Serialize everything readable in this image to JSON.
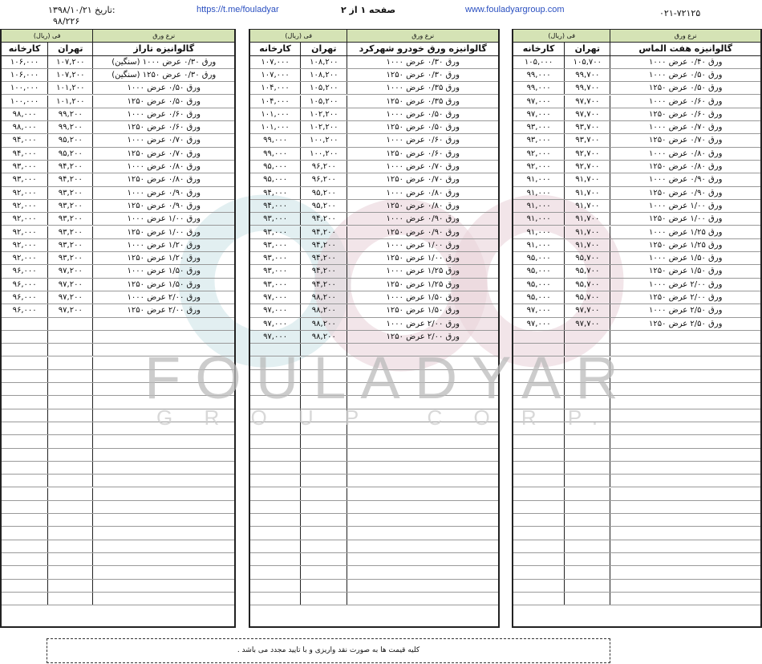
{
  "header": {
    "date_label": "تاریخ:",
    "date": "۱۳۹۸/۱۰/۲۱",
    "number": "۹۸/۲۲۶",
    "telegram": "https://t.me/fouladyar",
    "page": "صفحه ۱ از ۲",
    "website": "www.fouladyargroup.com",
    "phone": "۰۲۱-۷۲۱۲۵"
  },
  "watermark": {
    "brand": "FOULADYAR",
    "sub": "G R O U P   C O R P."
  },
  "colors": {
    "header_green": "#d5e3b5",
    "link_blue": "#2a4fc0"
  },
  "tables": [
    {
      "type_label": "نرع ورق",
      "price_label": "فی (ریال)",
      "title": "گالوانیزه تاراز",
      "col_tehran": "تهران",
      "col_factory": "کارخانه",
      "rows": [
        [
          "ورق ۰/۳۰ عرض ۱۰۰۰ (سنگین)",
          "۱۰۷,۲۰۰",
          "۱۰۶,۰۰۰"
        ],
        [
          "ورق ۰/۳۰ عرض ۱۲۵۰ (سنگین)",
          "۱۰۷,۲۰۰",
          "۱۰۶,۰۰۰"
        ],
        [
          "ورق ۰/۵۰ عرض ۱۰۰۰",
          "۱۰۱,۲۰۰",
          "۱۰۰,۰۰۰"
        ],
        [
          "ورق ۰/۵۰ عرض ۱۲۵۰",
          "۱۰۱,۲۰۰",
          "۱۰۰,۰۰۰"
        ],
        [
          "ورق ۰/۶۰ عرض ۱۰۰۰",
          "۹۹,۲۰۰",
          "۹۸,۰۰۰"
        ],
        [
          "ورق ۰/۶۰ عرض ۱۲۵۰",
          "۹۹,۲۰۰",
          "۹۸,۰۰۰"
        ],
        [
          "ورق ۰/۷۰ عرض ۱۰۰۰",
          "۹۵,۲۰۰",
          "۹۴,۰۰۰"
        ],
        [
          "ورق ۰/۷۰ عرض ۱۲۵۰",
          "۹۵,۲۰۰",
          "۹۴,۰۰۰"
        ],
        [
          "ورق ۰/۸۰ عرض ۱۰۰۰",
          "۹۴,۲۰۰",
          "۹۳,۰۰۰"
        ],
        [
          "ورق ۰/۸۰ عرض ۱۲۵۰",
          "۹۴,۲۰۰",
          "۹۳,۰۰۰"
        ],
        [
          "ورق ۰/۹۰ عرض ۱۰۰۰",
          "۹۳,۲۰۰",
          "۹۲,۰۰۰"
        ],
        [
          "ورق ۰/۹۰ عرض ۱۲۵۰",
          "۹۳,۲۰۰",
          "۹۲,۰۰۰"
        ],
        [
          "ورق ۱/۰۰ عرض ۱۰۰۰",
          "۹۳,۲۰۰",
          "۹۲,۰۰۰"
        ],
        [
          "ورق ۱/۰۰ عرض ۱۲۵۰",
          "۹۳,۲۰۰",
          "۹۲,۰۰۰"
        ],
        [
          "ورق ۱/۲۰ عرض ۱۰۰۰",
          "۹۳,۲۰۰",
          "۹۲,۰۰۰"
        ],
        [
          "ورق ۱/۲۰ عرض ۱۲۵۰",
          "۹۳,۲۰۰",
          "۹۲,۰۰۰"
        ],
        [
          "ورق ۱/۵۰ عرض ۱۰۰۰",
          "۹۷,۲۰۰",
          "۹۶,۰۰۰"
        ],
        [
          "ورق ۱/۵۰ عرض ۱۲۵۰",
          "۹۷,۲۰۰",
          "۹۶,۰۰۰"
        ],
        [
          "ورق ۲/۰۰ عرض ۱۰۰۰",
          "۹۷,۲۰۰",
          "۹۶,۰۰۰"
        ],
        [
          "ورق ۲/۰۰ عرض ۱۲۵۰",
          "۹۷,۲۰۰",
          "۹۶,۰۰۰"
        ]
      ]
    },
    {
      "type_label": "نرع ورق",
      "price_label": "فی (ریال)",
      "title": "گالوانیزه ورق خودرو شهرکرد",
      "col_tehran": "تهران",
      "col_factory": "کارخانه",
      "rows": [
        [
          "ورق ۰/۳۰ عرض ۱۰۰۰",
          "۱۰۸,۲۰۰",
          "۱۰۷,۰۰۰"
        ],
        [
          "ورق ۰/۳۰ عرض ۱۲۵۰",
          "۱۰۸,۲۰۰",
          "۱۰۷,۰۰۰"
        ],
        [
          "ورق ۰/۳۵ عرض ۱۰۰۰",
          "۱۰۵,۲۰۰",
          "۱۰۴,۰۰۰"
        ],
        [
          "ورق ۰/۳۵ عرض ۱۲۵۰",
          "۱۰۵,۲۰۰",
          "۱۰۴,۰۰۰"
        ],
        [
          "ورق ۰/۵۰ عرض ۱۰۰۰",
          "۱۰۲,۲۰۰",
          "۱۰۱,۰۰۰"
        ],
        [
          "ورق ۰/۵۰ عرض ۱۲۵۰",
          "۱۰۲,۲۰۰",
          "۱۰۱,۰۰۰"
        ],
        [
          "ورق ۰/۶۰ عرض ۱۰۰۰",
          "۱۰۰,۲۰۰",
          "۹۹,۰۰۰"
        ],
        [
          "ورق ۰/۶۰ عرض ۱۲۵۰",
          "۱۰۰,۲۰۰",
          "۹۹,۰۰۰"
        ],
        [
          "ورق ۰/۷۰ عرض ۱۰۰۰",
          "۹۶,۲۰۰",
          "۹۵,۰۰۰"
        ],
        [
          "ورق ۰/۷۰ عرض ۱۲۵۰",
          "۹۶,۲۰۰",
          "۹۵,۰۰۰"
        ],
        [
          "ورق ۰/۸۰ عرض ۱۰۰۰",
          "۹۵,۲۰۰",
          "۹۴,۰۰۰"
        ],
        [
          "ورق ۰/۸۰ عرض ۱۲۵۰",
          "۹۵,۲۰۰",
          "۹۴,۰۰۰"
        ],
        [
          "ورق ۰/۹۰ عرض ۱۰۰۰",
          "۹۴,۲۰۰",
          "۹۳,۰۰۰"
        ],
        [
          "ورق ۰/۹۰ عرض ۱۲۵۰",
          "۹۴,۲۰۰",
          "۹۳,۰۰۰"
        ],
        [
          "ورق ۱/۰۰ عرض ۱۰۰۰",
          "۹۴,۲۰۰",
          "۹۳,۰۰۰"
        ],
        [
          "ورق ۱/۰۰ عرض ۱۲۵۰",
          "۹۴,۲۰۰",
          "۹۳,۰۰۰"
        ],
        [
          "ورق ۱/۲۵ عرض ۱۰۰۰",
          "۹۴,۲۰۰",
          "۹۳,۰۰۰"
        ],
        [
          "ورق ۱/۲۵ عرض ۱۲۵۰",
          "۹۴,۲۰۰",
          "۹۳,۰۰۰"
        ],
        [
          "ورق ۱/۵۰ عرض ۱۰۰۰",
          "۹۸,۲۰۰",
          "۹۷,۰۰۰"
        ],
        [
          "ورق ۱/۵۰ عرض ۱۲۵۰",
          "۹۸,۲۰۰",
          "۹۷,۰۰۰"
        ],
        [
          "ورق ۲/۰۰ عرض ۱۰۰۰",
          "۹۸,۲۰۰",
          "۹۷,۰۰۰"
        ],
        [
          "ورق ۲/۰۰ عرض ۱۲۵۰",
          "۹۸,۲۰۰",
          "۹۷,۰۰۰"
        ]
      ]
    },
    {
      "type_label": "نرع ورق",
      "price_label": "فی (ریال)",
      "title": "گالوانیزه هفت الماس",
      "col_tehran": "تهران",
      "col_factory": "کارخانه",
      "rows": [
        [
          "ورق ۰/۴۰ عرض ۱۰۰۰",
          "۱۰۵,۷۰۰",
          "۱۰۵,۰۰۰"
        ],
        [
          "ورق ۰/۵۰ عرض ۱۰۰۰",
          "۹۹,۷۰۰",
          "۹۹,۰۰۰"
        ],
        [
          "ورق ۰/۵۰ عرض ۱۲۵۰",
          "۹۹,۷۰۰",
          "۹۹,۰۰۰"
        ],
        [
          "ورق ۰/۶۰ عرض ۱۰۰۰",
          "۹۷,۷۰۰",
          "۹۷,۰۰۰"
        ],
        [
          "ورق ۰/۶۰ عرض ۱۲۵۰",
          "۹۷,۷۰۰",
          "۹۷,۰۰۰"
        ],
        [
          "ورق ۰/۷۰ عرض ۱۰۰۰",
          "۹۳,۷۰۰",
          "۹۳,۰۰۰"
        ],
        [
          "ورق ۰/۷۰ عرض ۱۲۵۰",
          "۹۳,۷۰۰",
          "۹۳,۰۰۰"
        ],
        [
          "ورق ۰/۸۰ عرض ۱۰۰۰",
          "۹۲,۷۰۰",
          "۹۲,۰۰۰"
        ],
        [
          "ورق ۰/۸۰ عرض ۱۲۵۰",
          "۹۲,۷۰۰",
          "۹۲,۰۰۰"
        ],
        [
          "ورق ۰/۹۰ عرض ۱۰۰۰",
          "۹۱,۷۰۰",
          "۹۱,۰۰۰"
        ],
        [
          "ورق ۰/۹۰ عرض ۱۲۵۰",
          "۹۱,۷۰۰",
          "۹۱,۰۰۰"
        ],
        [
          "ورق ۱/۰۰ عرض ۱۰۰۰",
          "۹۱,۷۰۰",
          "۹۱,۰۰۰"
        ],
        [
          "ورق ۱/۰۰ عرض ۱۲۵۰",
          "۹۱,۷۰۰",
          "۹۱,۰۰۰"
        ],
        [
          "ورق ۱/۲۵ عرض ۱۰۰۰",
          "۹۱,۷۰۰",
          "۹۱,۰۰۰"
        ],
        [
          "ورق ۱/۲۵ عرض ۱۲۵۰",
          "۹۱,۷۰۰",
          "۹۱,۰۰۰"
        ],
        [
          "ورق ۱/۵۰ عرض ۱۰۰۰",
          "۹۵,۷۰۰",
          "۹۵,۰۰۰"
        ],
        [
          "ورق ۱/۵۰ عرض ۱۲۵۰",
          "۹۵,۷۰۰",
          "۹۵,۰۰۰"
        ],
        [
          "ورق ۲/۰۰ عرض ۱۰۰۰",
          "۹۵,۷۰۰",
          "۹۵,۰۰۰"
        ],
        [
          "ورق ۲/۰۰ عرض ۱۲۵۰",
          "۹۵,۷۰۰",
          "۹۵,۰۰۰"
        ],
        [
          "ورق ۲/۵۰ عرض ۱۰۰۰",
          "۹۷,۷۰۰",
          "۹۷,۰۰۰"
        ],
        [
          "ورق ۲/۵۰ عرض ۱۲۵۰",
          "۹۷,۷۰۰",
          "۹۷,۰۰۰"
        ]
      ]
    }
  ],
  "footer": {
    "note": "کلیه قیمت ها به صورت نقد واریزی و با تایید مجدد می باشد ."
  }
}
